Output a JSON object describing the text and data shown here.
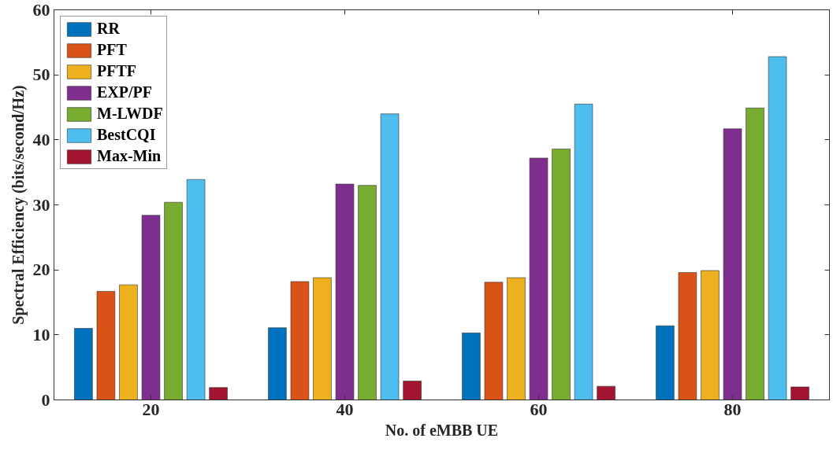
{
  "chart_data": {
    "type": "bar",
    "xlabel": "No. of eMBB UE",
    "ylabel": "Spectral Efficiency (bits/second/Hz)",
    "categories": [
      "20",
      "40",
      "60",
      "80"
    ],
    "series": [
      {
        "name": "RR",
        "color": "#0072bd",
        "values": [
          11.0,
          11.1,
          10.3,
          11.4
        ]
      },
      {
        "name": "PFT",
        "color": "#d95319",
        "values": [
          16.7,
          18.2,
          18.1,
          19.6
        ]
      },
      {
        "name": "PFTF",
        "color": "#edb120",
        "values": [
          17.7,
          18.8,
          18.8,
          19.9
        ]
      },
      {
        "name": "EXP/PF",
        "color": "#7e2f8e",
        "values": [
          28.4,
          33.2,
          37.2,
          41.7
        ]
      },
      {
        "name": "M-LWDF",
        "color": "#77ac30",
        "values": [
          30.4,
          33.0,
          38.6,
          44.9
        ]
      },
      {
        "name": "BestCQI",
        "color": "#4dbeee",
        "values": [
          33.9,
          44.0,
          45.5,
          52.8
        ]
      },
      {
        "name": "Max-Min",
        "color": "#a2142f",
        "values": [
          1.9,
          2.9,
          2.1,
          2.0
        ]
      }
    ],
    "ylim": [
      0,
      60
    ],
    "yticks": [
      0,
      10,
      20,
      30,
      40,
      50,
      60
    ],
    "grid": false,
    "legend": "top left"
  }
}
